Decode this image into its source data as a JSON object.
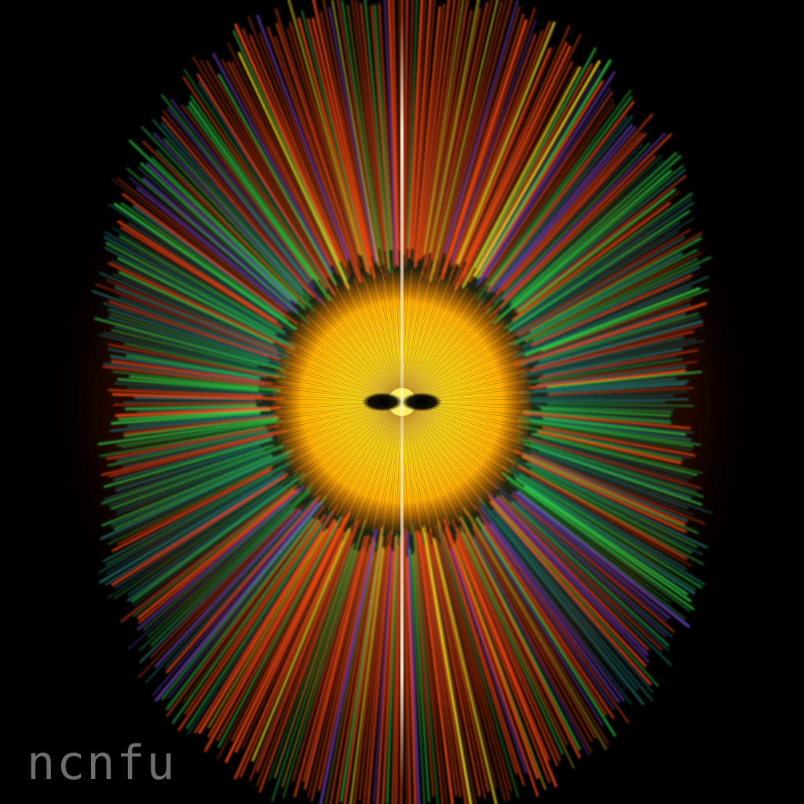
{
  "watermark": {
    "text": "ncnfu"
  },
  "colors": {
    "background": "#000000",
    "core": "#ffe31a",
    "core_edge": "#ff8a00",
    "ray_orange": "#ff4a12",
    "ray_green": "#2fd94a",
    "ray_teal": "#1f6f6a",
    "ray_violet": "#6b3fb8",
    "center_line": "#fffbe0",
    "watermark": "#6e6e6e"
  }
}
